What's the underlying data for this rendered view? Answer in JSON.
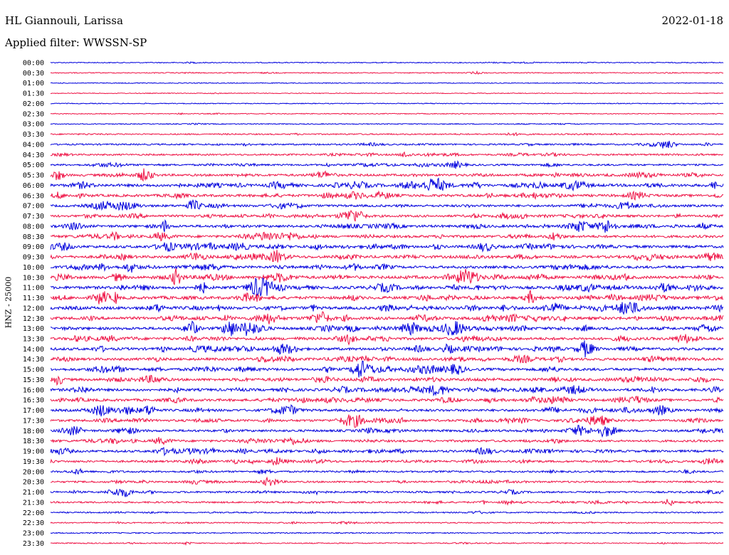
{
  "header": {
    "station": "HL Giannouli, Larissa",
    "date": "2022-01-18",
    "filter": "Applied filter: WWSSN-SP"
  },
  "chart_data": {
    "type": "line",
    "ylabel": "HNZ - 25000",
    "colors": [
      "#0000dd",
      "#ee1144"
    ],
    "trace_labels": [
      "00:00",
      "00:30",
      "01:00",
      "01:30",
      "02:00",
      "02:30",
      "03:00",
      "03:30",
      "04:00",
      "04:30",
      "05:00",
      "05:30",
      "06:00",
      "06:30",
      "07:00",
      "07:30",
      "08:00",
      "08:30",
      "09:00",
      "09:30",
      "10:00",
      "10:30",
      "11:00",
      "11:30",
      "12:00",
      "12:30",
      "13:00",
      "13:30",
      "14:00",
      "14:30",
      "15:00",
      "15:30",
      "16:00",
      "16:30",
      "17:00",
      "17:30",
      "18:00",
      "18:30",
      "19:00",
      "19:30",
      "20:00",
      "20:30",
      "21:00",
      "21:30",
      "22:00",
      "22:30",
      "23:00",
      "23:30"
    ],
    "activity": [
      0.15,
      0.15,
      0.1,
      0.08,
      0.1,
      0.12,
      0.15,
      0.3,
      0.4,
      0.45,
      0.5,
      0.7,
      0.9,
      0.8,
      0.7,
      0.7,
      0.8,
      0.8,
      0.85,
      0.85,
      0.8,
      0.9,
      0.95,
      0.9,
      0.95,
      0.95,
      0.9,
      0.85,
      0.85,
      0.8,
      0.85,
      0.8,
      0.85,
      0.8,
      0.75,
      0.7,
      0.7,
      0.65,
      0.7,
      0.6,
      0.5,
      0.5,
      0.5,
      0.45,
      0.3,
      0.25,
      0.2,
      0.2
    ]
  }
}
